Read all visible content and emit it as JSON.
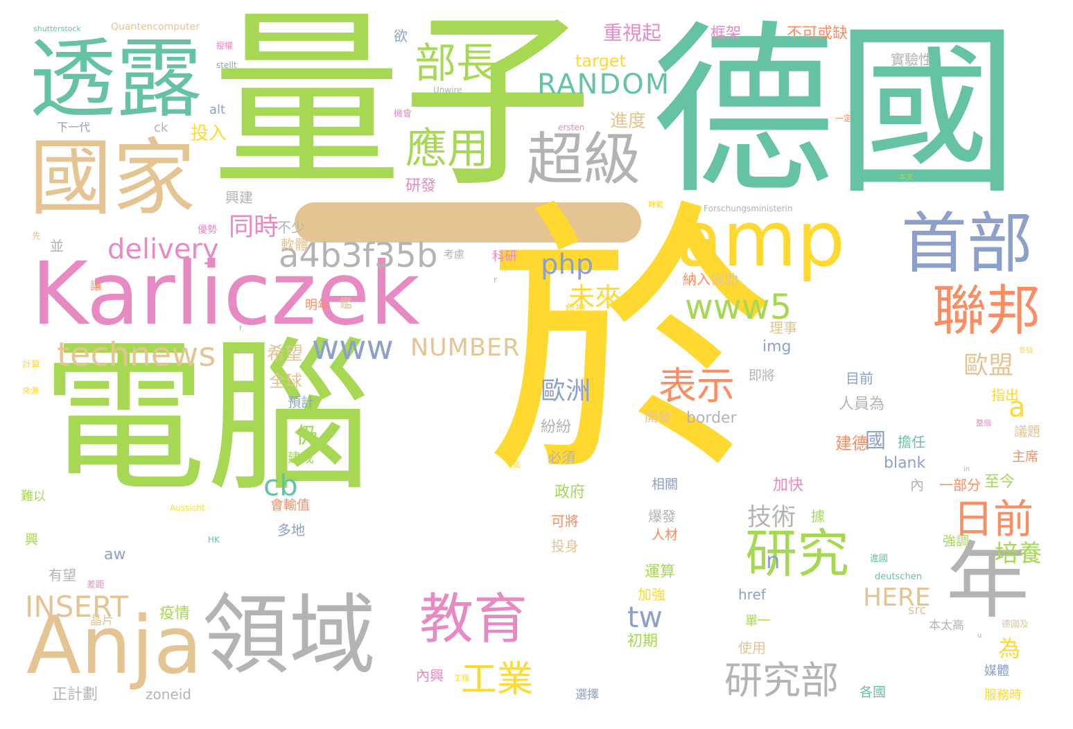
{
  "palette": {
    "green": "#a6d854",
    "teal": "#66c2a5",
    "yellow": "#ffd92f",
    "pink": "#e78ac3",
    "tan": "#e5c494",
    "gray": "#b3b3b3",
    "blue": "#8da0cb",
    "orange": "#fc8d62"
  },
  "long_dash": {
    "text": "—",
    "color": "#e5c494"
  },
  "words": [
    {
      "text": "電腦",
      "color": "#a6d854"
    },
    {
      "text": "於",
      "color": "#ffd92f"
    },
    {
      "text": "德國",
      "color": "#66c2a5"
    },
    {
      "text": "量子",
      "color": "#a6d854"
    },
    {
      "text": "Karliczek",
      "color": "#e78ac3"
    },
    {
      "text": "透露",
      "color": "#66c2a5"
    },
    {
      "text": "國家",
      "color": "#e5c494"
    },
    {
      "text": "Anja",
      "color": "#e5c494"
    },
    {
      "text": "領域",
      "color": "#b3b3b3"
    },
    {
      "text": "首部",
      "color": "#8da0cb"
    },
    {
      "text": "amp",
      "color": "#ffd92f"
    },
    {
      "text": "年",
      "color": "#b3b3b3"
    },
    {
      "text": "教育",
      "color": "#e78ac3"
    },
    {
      "text": "聯邦",
      "color": "#fc8d62"
    },
    {
      "text": "研究",
      "color": "#a6d854"
    },
    {
      "text": "超級",
      "color": "#b3b3b3"
    },
    {
      "text": "部長",
      "color": "#a6d854"
    },
    {
      "text": "應用",
      "color": "#a6d854"
    },
    {
      "text": "RANDOM",
      "color": "#66c2a5"
    },
    {
      "text": "www5",
      "color": "#a6d854"
    },
    {
      "text": "technews",
      "color": "#e5c494"
    },
    {
      "text": "www",
      "color": "#8da0cb"
    },
    {
      "text": "a4b3f35b",
      "color": "#b3b3b3"
    },
    {
      "text": "delivery",
      "color": "#e78ac3"
    },
    {
      "text": "同時",
      "color": "#e78ac3"
    },
    {
      "text": "表示",
      "color": "#fc8d62"
    },
    {
      "text": "日前",
      "color": "#fc8d62"
    },
    {
      "text": "研究部",
      "color": "#b3b3b3"
    },
    {
      "text": "工業",
      "color": "#ffd92f"
    },
    {
      "text": "INSERT",
      "color": "#e5c494"
    },
    {
      "text": "php",
      "color": "#8da0cb"
    },
    {
      "text": "未來",
      "color": "#ffd92f"
    },
    {
      "text": "NUMBER",
      "color": "#e5c494"
    },
    {
      "text": "HERE",
      "color": "#e5c494"
    },
    {
      "text": "歐洲",
      "color": "#8da0cb"
    },
    {
      "text": "歐盟",
      "color": "#e5c494"
    },
    {
      "text": "a",
      "color": "#ffd92f"
    },
    {
      "text": "cb",
      "color": "#66c2a5"
    },
    {
      "text": "tw",
      "color": "#8da0cb"
    },
    {
      "text": "n",
      "color": "#8da0cb"
    },
    {
      "text": "技術",
      "color": "#b3b3b3"
    },
    {
      "text": "培養",
      "color": "#a6d854"
    },
    {
      "text": "國",
      "color": "#8da0cb"
    },
    {
      "text": "仍",
      "color": "#a6d854"
    },
    {
      "text": "為",
      "color": "#ffd92f"
    },
    {
      "text": "希望",
      "color": "#e5c494"
    },
    {
      "text": "全球",
      "color": "#e5c494"
    },
    {
      "text": "投入",
      "color": "#ffd92f"
    },
    {
      "text": "研發",
      "color": "#e78ac3"
    },
    {
      "text": "進度",
      "color": "#e5c494"
    },
    {
      "text": "target",
      "color": "#ffd92f"
    },
    {
      "text": "重視起",
      "color": "#e78ac3"
    },
    {
      "text": "框架",
      "color": "#e78ac3"
    },
    {
      "text": "不可或缺",
      "color": "#fc8d62"
    },
    {
      "text": "實驗性",
      "color": "#b3b3b3"
    },
    {
      "text": "興建",
      "color": "#b3b3b3"
    },
    {
      "text": "不少",
      "color": "#b3b3b3"
    },
    {
      "text": "軟體",
      "color": "#e5c494"
    },
    {
      "text": "協助",
      "color": "#e5c494"
    },
    {
      "text": "納入",
      "color": "#fc8d62"
    },
    {
      "text": "理事",
      "color": "#e5c494"
    },
    {
      "text": "img",
      "color": "#8da0cb"
    },
    {
      "text": "即將",
      "color": "#b3b3b3"
    },
    {
      "text": "目前",
      "color": "#8da0cb"
    },
    {
      "text": "人員為",
      "color": "#b3b3b3"
    },
    {
      "text": "指出",
      "color": "#ffd92f"
    },
    {
      "text": "議題",
      "color": "#e5c494"
    },
    {
      "text": "主席",
      "color": "#fc8d62"
    },
    {
      "text": "建德",
      "color": "#fc8d62"
    },
    {
      "text": "擔任",
      "color": "#66c2a5"
    },
    {
      "text": "blank",
      "color": "#8da0cb"
    },
    {
      "text": "border",
      "color": "#b3b3b3"
    },
    {
      "text": "開發",
      "color": "#e5c494"
    },
    {
      "text": "紛紛",
      "color": "#b3b3b3"
    },
    {
      "text": "必須",
      "color": "#b3b3b3"
    },
    {
      "text": "預計",
      "color": "#8da0cb"
    },
    {
      "text": "建成",
      "color": "#a6d854"
    },
    {
      "text": "加快",
      "color": "#e78ac3"
    },
    {
      "text": "政府",
      "color": "#a6d854"
    },
    {
      "text": "相關",
      "color": "#8da0cb"
    },
    {
      "text": "內",
      "color": "#b3b3b3"
    },
    {
      "text": "一部分",
      "color": "#fc8d62"
    },
    {
      "text": "至今",
      "color": "#a6d854"
    },
    {
      "text": "據",
      "color": "#a6d854"
    },
    {
      "text": "強調",
      "color": "#a6d854"
    },
    {
      "text": "爆發",
      "color": "#b3b3b3"
    },
    {
      "text": "人材",
      "color": "#fc8d62"
    },
    {
      "text": "可將",
      "color": "#fc8d62"
    },
    {
      "text": "投身",
      "color": "#e5c494"
    },
    {
      "text": "運算",
      "color": "#a6d854"
    },
    {
      "text": "加強",
      "color": "#ffd92f"
    },
    {
      "text": "初期",
      "color": "#a6d854"
    },
    {
      "text": "疫情",
      "color": "#a6d854"
    },
    {
      "text": "有望",
      "color": "#b3b3b3"
    },
    {
      "text": "會輸值",
      "color": "#fc8d62"
    },
    {
      "text": "多地",
      "color": "#8da0cb"
    },
    {
      "text": "使用",
      "color": "#e5c494"
    },
    {
      "text": "單一",
      "color": "#a6d854"
    },
    {
      "text": "href",
      "color": "#8da0cb"
    },
    {
      "text": "src",
      "color": "#e5c494"
    },
    {
      "text": "本太高",
      "color": "#b3b3b3"
    },
    {
      "text": "媒體",
      "color": "#8da0cb"
    },
    {
      "text": "服務時",
      "color": "#ffd92f"
    },
    {
      "text": "各國",
      "color": "#66c2a5"
    },
    {
      "text": "內興",
      "color": "#e78ac3"
    },
    {
      "text": "正計劃",
      "color": "#b3b3b3"
    },
    {
      "text": "zoneid",
      "color": "#b3b3b3"
    },
    {
      "text": "晶片",
      "color": "#e5c494"
    },
    {
      "text": "選擇",
      "color": "#8da0cb"
    },
    {
      "text": "aw",
      "color": "#8da0cb"
    },
    {
      "text": "並",
      "color": "#b3b3b3"
    },
    {
      "text": "讓",
      "color": "#fc8d62"
    },
    {
      "text": "明年",
      "color": "#fc8d62"
    },
    {
      "text": "考慮",
      "color": "#b3b3b3"
    },
    {
      "text": "科研",
      "color": "#e78ac3"
    },
    {
      "text": "負擔",
      "color": "#ffd92f"
    },
    {
      "text": "alt",
      "color": "#8da0cb"
    },
    {
      "text": "ck",
      "color": "#b3b3b3"
    },
    {
      "text": "下一代",
      "color": "#8da0cb"
    },
    {
      "text": "欲",
      "color": "#8da0cb"
    },
    {
      "text": "機會",
      "color": "#e78ac3"
    },
    {
      "text": "ersten",
      "color": "#e78ac3"
    },
    {
      "text": "一定",
      "color": "#fc8d62"
    },
    {
      "text": "本文",
      "color": "#a6d854"
    },
    {
      "text": "Forschungsministerin",
      "color": "#b3b3b3"
    },
    {
      "text": "轉載",
      "color": "#ffd92f"
    },
    {
      "text": "Unwire",
      "color": "#b3b3b3"
    },
    {
      "text": "stellt",
      "color": "#8da0cb"
    },
    {
      "text": "授權",
      "color": "#e78ac3"
    },
    {
      "text": "shutterstock",
      "color": "#66c2a5"
    },
    {
      "text": "Quantencomputer",
      "color": "#e5c494"
    },
    {
      "text": "先",
      "color": "#e5c494"
    },
    {
      "text": "優勢",
      "color": "#e78ac3"
    },
    {
      "text": "計算",
      "color": "#ffd92f"
    },
    {
      "text": "來源",
      "color": "#ffd92f"
    },
    {
      "text": "難以",
      "color": "#a6d854"
    },
    {
      "text": "興",
      "color": "#a6d854"
    },
    {
      "text": "差距",
      "color": "#e78ac3"
    },
    {
      "text": "Aussicht",
      "color": "#ffd92f"
    },
    {
      "text": "HK",
      "color": "#66c2a5"
    },
    {
      "text": "這",
      "color": "#ffd92f"
    },
    {
      "text": "in",
      "color": "#b3b3b3"
    },
    {
      "text": "進國",
      "color": "#66c2a5"
    },
    {
      "text": "deutschen",
      "color": "#66c2a5"
    },
    {
      "text": "德國及",
      "color": "#e5c494"
    },
    {
      "text": "u",
      "color": "#fc8d62"
    },
    {
      "text": "整個",
      "color": "#e78ac3"
    },
    {
      "text": "首個",
      "color": "#ffd92f"
    },
    {
      "text": "工程",
      "color": "#ffd92f"
    },
    {
      "text": "f",
      "color": "#b3b3b3"
    },
    {
      "text": "r",
      "color": "#b3b3b3"
    },
    {
      "text": "鑑",
      "color": "#e5c494"
    }
  ]
}
